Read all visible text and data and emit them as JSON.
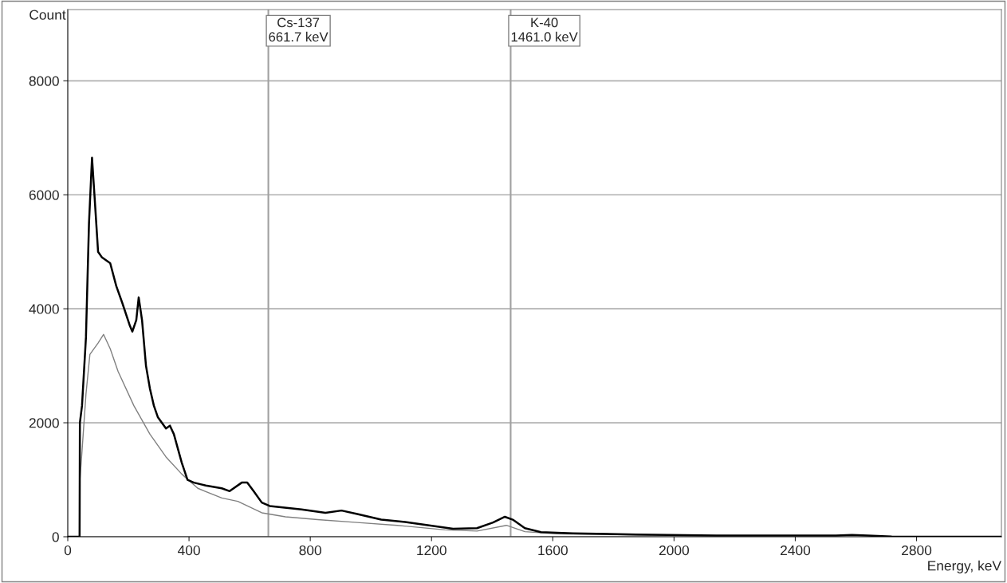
{
  "chart_data": {
    "type": "line",
    "xlabel": "Energy, keV",
    "ylabel": "Count",
    "xlim": [
      0,
      3080
    ],
    "ylim": [
      0,
      9250
    ],
    "xticks": [
      0,
      400,
      800,
      1200,
      1600,
      2000,
      2400,
      2800
    ],
    "yticks": [
      0,
      2000,
      4000,
      6000,
      8000
    ],
    "grid": "y",
    "line_style": "solid",
    "marker": "none",
    "series": [
      {
        "color": "#000000",
        "x": [
          0,
          39,
          40,
          47,
          60,
          70,
          80,
          88,
          100,
          113,
          140,
          160,
          180,
          205,
          213,
          226,
          234,
          245,
          258,
          271,
          284,
          297,
          324,
          337,
          350,
          376,
          395,
          416,
          455,
          508,
          534,
          574,
          592,
          613,
          640,
          666,
          771,
          850,
          903,
          955,
          1034,
          1113,
          1192,
          1271,
          1350,
          1403,
          1442,
          1468,
          1508,
          1561,
          1666,
          1876,
          2139,
          2403,
          2534,
          2587,
          2639,
          2718,
          3080
        ],
        "values": [
          0,
          0,
          2000,
          2300,
          3500,
          5500,
          6650,
          6000,
          5000,
          4900,
          4800,
          4400,
          4100,
          3700,
          3600,
          3800,
          4200,
          3800,
          3000,
          2600,
          2300,
          2100,
          1900,
          1950,
          1800,
          1300,
          1000,
          950,
          900,
          850,
          800,
          950,
          950,
          800,
          600,
          540,
          480,
          420,
          460,
          400,
          300,
          260,
          200,
          140,
          150,
          250,
          350,
          300,
          150,
          80,
          60,
          40,
          20,
          20,
          20,
          30,
          20,
          5,
          0
        ]
      },
      {
        "color": "#808080",
        "x": [
          0,
          39,
          40,
          47,
          60,
          73,
          100,
          118,
          140,
          166,
          218,
          271,
          324,
          376,
          429,
          508,
          561,
          640,
          718,
          824,
          955,
          1087,
          1245,
          1350,
          1447,
          1508,
          1613,
          1876,
          2403,
          2718,
          3080
        ],
        "values": [
          0,
          0,
          1000,
          1500,
          2500,
          3200,
          3400,
          3550,
          3300,
          2900,
          2300,
          1800,
          1400,
          1100,
          850,
          680,
          620,
          420,
          350,
          300,
          250,
          200,
          120,
          100,
          200,
          90,
          50,
          30,
          10,
          0,
          0
        ]
      }
    ],
    "ref_lines": [
      {
        "axis": "x",
        "value": 661.7,
        "label": "Cs-137\n661.7 keV",
        "color": "#a0a0a0"
      },
      {
        "axis": "x",
        "value": 1461.0,
        "label": "K-40\n1461.0 keV",
        "color": "#a0a0a0"
      }
    ]
  }
}
